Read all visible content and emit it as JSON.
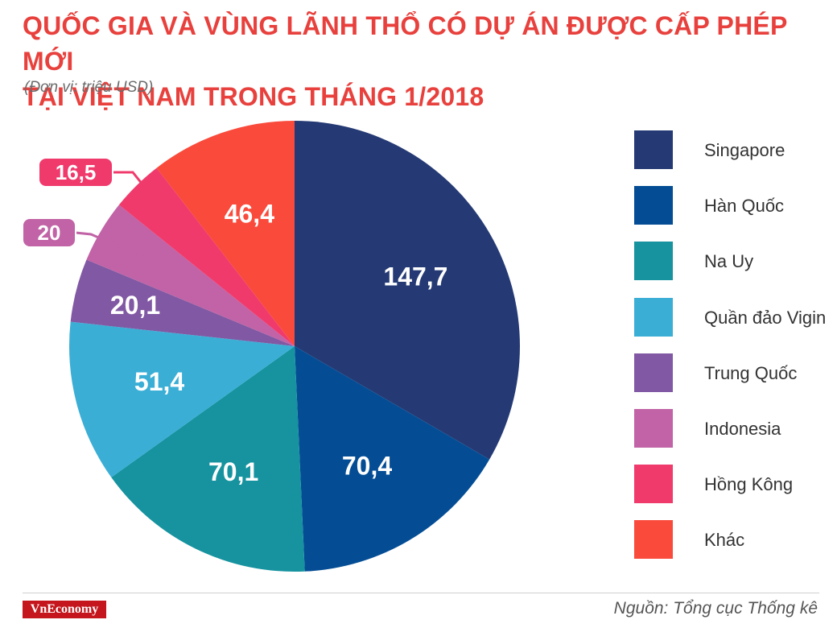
{
  "header": {
    "title_line1": "QUỐC GIA VÀ VÙNG LÃNH THỔ CÓ DỰ ÁN ĐƯỢC CẤP PHÉP MỚI",
    "title_line2": "TẠI VIỆT NAM TRONG THÁNG 1/2018",
    "unit": "(Đơn vị: triệu USD)"
  },
  "footer": {
    "logo_text": "VnEconomy",
    "source": "Nguồn: Tổng cục Thống kê"
  },
  "chart_data": {
    "type": "pie",
    "title": "QUỐC GIA VÀ VÙNG LÃNH THỔ CÓ DỰ ÁN ĐƯỢC CẤP PHÉP MỚI TẠI VIỆT NAM TRONG THÁNG 1/2018",
    "unit": "(Đơn vị: triệu USD)",
    "legend_position": "right",
    "slices": [
      {
        "name": "Singapore",
        "value": 147.7,
        "label": "147,7",
        "color": "#253a74"
      },
      {
        "name": "Hàn Quốc",
        "value": 70.4,
        "label": "70,4",
        "color": "#044d95"
      },
      {
        "name": "Na Uy",
        "value": 70.1,
        "label": "70,1",
        "color": "#16939f"
      },
      {
        "name": "Quần đảo Vigin",
        "value": 51.4,
        "label": "51,4",
        "color": "#3baed6"
      },
      {
        "name": "Trung Quốc",
        "value": 20.1,
        "label": "20,1",
        "color": "#8158a3"
      },
      {
        "name": "Indonesia",
        "value": 20,
        "label": "20",
        "color": "#c163a6"
      },
      {
        "name": "Hồng Kông",
        "value": 16.5,
        "label": "16,5",
        "color": "#f03a6c"
      },
      {
        "name": "Khác",
        "value": 46.4,
        "label": "46,4",
        "color": "#f94a3b"
      }
    ]
  }
}
